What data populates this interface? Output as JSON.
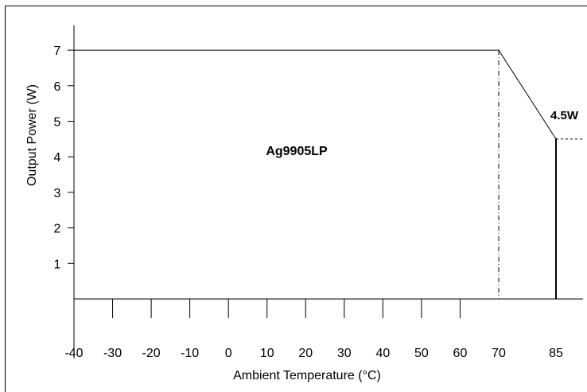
{
  "chart_data": {
    "type": "line",
    "title": "",
    "xlabel": "Ambient Temperature (°C)",
    "ylabel": "Output Power (W)",
    "xlim": [
      -45,
      92
    ],
    "ylim": [
      -1,
      7.7
    ],
    "x_ticks": [
      -40,
      -30,
      -20,
      -10,
      0,
      10,
      20,
      30,
      40,
      50,
      60,
      70,
      85
    ],
    "y_ticks": [
      1,
      2,
      3,
      4,
      5,
      6,
      7
    ],
    "grid": false,
    "legend": "none",
    "series": [
      {
        "name": "Ag9905LP",
        "x": [
          -40,
          70,
          85
        ],
        "y": [
          7,
          7,
          4.5
        ],
        "color": "#000000"
      }
    ],
    "annotations": [
      {
        "text": "4.5W",
        "x": 85,
        "y": 4.5
      }
    ],
    "reference_lines": [
      {
        "type": "vertical-dashdot",
        "x": 70,
        "y_from": 0,
        "y_to": 7
      },
      {
        "type": "vertical-solid",
        "x": 85,
        "y_from": 0,
        "y_to": 4.5
      },
      {
        "type": "horizontal-dashed",
        "y": 4.5,
        "x_from": 85,
        "x_to": 92
      }
    ]
  }
}
